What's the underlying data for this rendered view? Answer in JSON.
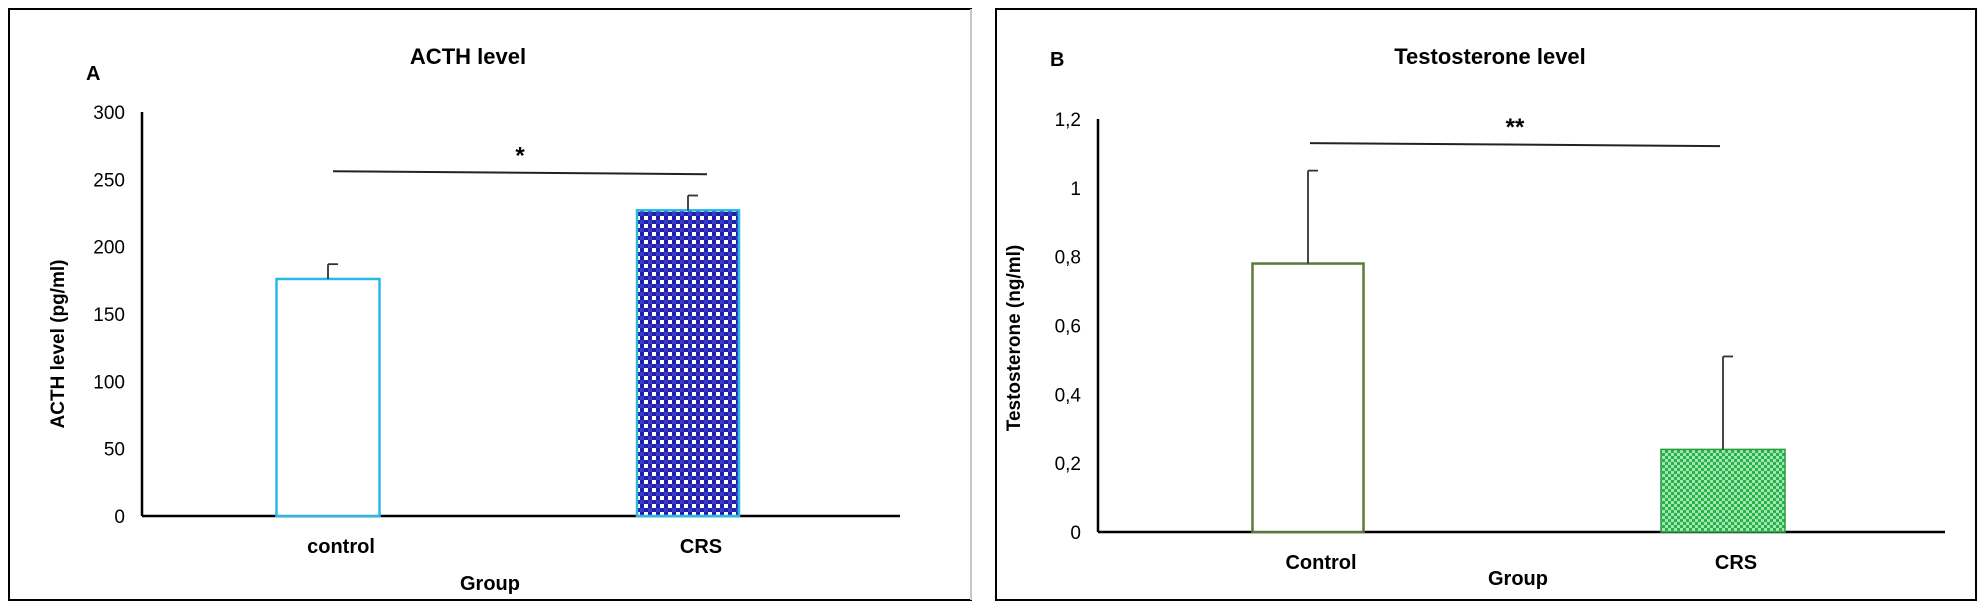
{
  "chart_data": [
    {
      "type": "bar",
      "panel_label": "A",
      "title": "ACTH level",
      "xlabel": "Group",
      "ylabel": "ACTH level (pg/ml)",
      "categories": [
        "control",
        "CRS"
      ],
      "values": [
        176,
        227
      ],
      "errors": [
        11,
        11
      ],
      "ylim": [
        0,
        300
      ],
      "yticks": [
        0,
        50,
        100,
        150,
        200,
        250,
        300
      ],
      "ytick_labels": [
        "0",
        "50",
        "100",
        "150",
        "200",
        "250",
        "300"
      ],
      "significance": {
        "label": "*",
        "y": 256
      },
      "colors": {
        "edge": "#2db7e8",
        "pattern": "#1f1fa8",
        "axis": "#000000"
      }
    },
    {
      "type": "bar",
      "panel_label": "B",
      "title": "Testosterone level",
      "xlabel": "Group",
      "ylabel": "Testosterone (ng/ml)",
      "categories": [
        "Control",
        "CRS"
      ],
      "values": [
        0.78,
        0.24
      ],
      "errors": [
        0.27,
        0.27
      ],
      "ylim": [
        0,
        1.2
      ],
      "yticks": [
        0,
        0.2,
        0.4,
        0.6,
        0.8,
        1,
        1.2
      ],
      "ytick_labels": [
        "0",
        "0,2",
        "0,4",
        "0,6",
        "0,8",
        "1",
        "1,2"
      ],
      "significance": {
        "label": "**",
        "y": 1.13
      },
      "colors": {
        "edge_control": "#5c7a3a",
        "fill_crs": "#27b34a",
        "axis": "#000000"
      }
    }
  ]
}
